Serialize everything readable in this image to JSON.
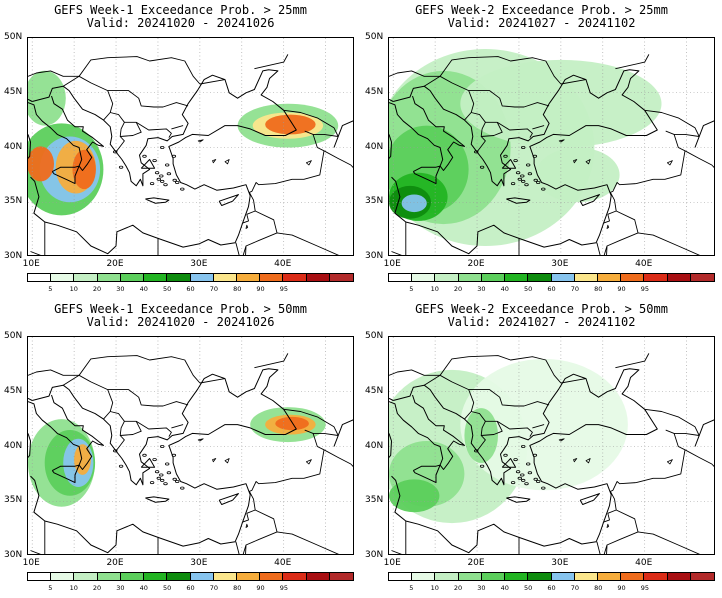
{
  "panels": [
    {
      "title_line1": "GEFS Week-1 Exceedance Prob. > 25mm",
      "title_line2": "Valid: 20241020 - 20241026",
      "blobs": [
        {
          "lon": 13.5,
          "lat": 38.0,
          "rx": 5.0,
          "ry": 4.2,
          "level": 3
        },
        {
          "lon": 14.5,
          "lat": 38.0,
          "rx": 3.6,
          "ry": 3.0,
          "level": 6
        },
        {
          "lon": 15.2,
          "lat": 38.2,
          "rx": 2.4,
          "ry": 2.4,
          "level": 8
        },
        {
          "lon": 16.2,
          "lat": 38.0,
          "rx": 1.4,
          "ry": 1.8,
          "level": 9
        },
        {
          "lon": 11.5,
          "lat": 44.5,
          "rx": 2.5,
          "ry": 2.5,
          "level": 2
        },
        {
          "lon": 11.0,
          "lat": 38.5,
          "rx": 1.6,
          "ry": 1.6,
          "level": 9
        },
        {
          "lon": 40.5,
          "lat": 42.0,
          "rx": 6.0,
          "ry": 2.0,
          "level": 2
        },
        {
          "lon": 40.5,
          "lat": 42.0,
          "rx": 4.2,
          "ry": 1.2,
          "level": 7
        },
        {
          "lon": 40.8,
          "lat": 42.1,
          "rx": 3.0,
          "ry": 0.9,
          "level": 9
        }
      ]
    },
    {
      "title_line1": "GEFS Week-2 Exceedance Prob. > 25mm",
      "title_line2": "Valid: 20241027 - 20241102",
      "blobs": [
        {
          "lon": 21.0,
          "lat": 40.0,
          "rx": 13.0,
          "ry": 9.0,
          "level": 1
        },
        {
          "lon": 16.0,
          "lat": 40.0,
          "rx": 8.0,
          "ry": 7.0,
          "level": 2
        },
        {
          "lon": 30.0,
          "lat": 44.0,
          "rx": 12.0,
          "ry": 4.0,
          "level": 1
        },
        {
          "lon": 14.0,
          "lat": 38.0,
          "rx": 5.0,
          "ry": 4.0,
          "level": 3
        },
        {
          "lon": 13.0,
          "lat": 35.5,
          "rx": 3.5,
          "ry": 2.2,
          "level": 4
        },
        {
          "lon": 12.0,
          "lat": 35.0,
          "rx": 2.5,
          "ry": 1.5,
          "level": 5
        },
        {
          "lon": 12.5,
          "lat": 34.9,
          "rx": 1.5,
          "ry": 0.8,
          "level": 6
        },
        {
          "lon": 32.0,
          "lat": 37.5,
          "rx": 5.0,
          "ry": 2.5,
          "level": 1
        }
      ]
    },
    {
      "title_line1": "GEFS Week-1 Exceedance Prob. > 50mm",
      "title_line2": "Valid: 20241020 - 20241026",
      "blobs": [
        {
          "lon": 13.5,
          "lat": 38.5,
          "rx": 4.0,
          "ry": 4.0,
          "level": 2
        },
        {
          "lon": 14.5,
          "lat": 38.5,
          "rx": 3.0,
          "ry": 3.0,
          "level": 3
        },
        {
          "lon": 15.5,
          "lat": 38.5,
          "rx": 1.8,
          "ry": 2.2,
          "level": 6
        },
        {
          "lon": 16.0,
          "lat": 38.8,
          "rx": 1.0,
          "ry": 1.4,
          "level": 8
        },
        {
          "lon": 40.5,
          "lat": 42.0,
          "rx": 4.5,
          "ry": 1.6,
          "level": 2
        },
        {
          "lon": 40.8,
          "lat": 42.0,
          "rx": 3.0,
          "ry": 0.9,
          "level": 8
        },
        {
          "lon": 41.0,
          "lat": 42.1,
          "rx": 2.0,
          "ry": 0.6,
          "level": 9
        }
      ]
    },
    {
      "title_line1": "GEFS Week-2 Exceedance Prob. > 50mm",
      "title_line2": "Valid: 20241027 - 20241102",
      "blobs": [
        {
          "lon": 17.0,
          "lat": 40.0,
          "rx": 9.0,
          "ry": 7.0,
          "level": 1
        },
        {
          "lon": 28.0,
          "lat": 42.0,
          "rx": 10.0,
          "ry": 6.0,
          "level": 0
        },
        {
          "lon": 14.0,
          "lat": 37.5,
          "rx": 4.5,
          "ry": 3.0,
          "level": 2
        },
        {
          "lon": 12.5,
          "lat": 35.5,
          "rx": 3.0,
          "ry": 1.5,
          "level": 3
        },
        {
          "lon": 20.5,
          "lat": 41.0,
          "rx": 2.0,
          "ry": 2.5,
          "level": 2
        }
      ]
    }
  ],
  "lat_labels": [
    "50N",
    "45N",
    "40N",
    "35N",
    "30N"
  ],
  "lon_labels": [
    "10E",
    "20E",
    "30E",
    "40E"
  ],
  "colorbar_labels": [
    "5",
    "10",
    "20",
    "30",
    "40",
    "50",
    "60",
    "70",
    "80",
    "90",
    "95"
  ],
  "colors": [
    "#ffffff",
    "#e6fae6",
    "#c4efc4",
    "#8fe08f",
    "#5ccf5c",
    "#22b422",
    "#0e8c0e",
    "#87c4ee",
    "#fbe68c",
    "#f6ad3c",
    "#ef6c1c",
    "#db2c17",
    "#a80f12",
    "#b22a2a"
  ]
}
